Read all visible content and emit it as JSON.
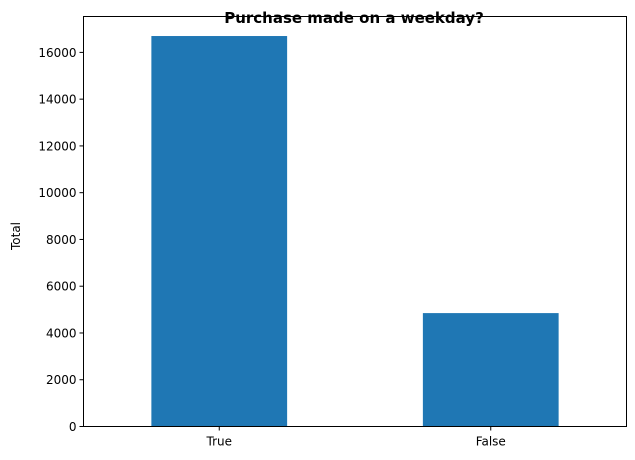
{
  "chart_data": {
    "type": "bar",
    "title": "Purchase made on a weekday?",
    "xlabel": "",
    "ylabel": "Total",
    "categories": [
      "True",
      "False"
    ],
    "values": [
      16700,
      4850
    ],
    "yticks": [
      0,
      2000,
      4000,
      6000,
      8000,
      10000,
      12000,
      14000,
      16000
    ],
    "ylim": [
      0,
      17535
    ],
    "grid": false,
    "legend": "none",
    "bar_color": "#1f77b4"
  }
}
